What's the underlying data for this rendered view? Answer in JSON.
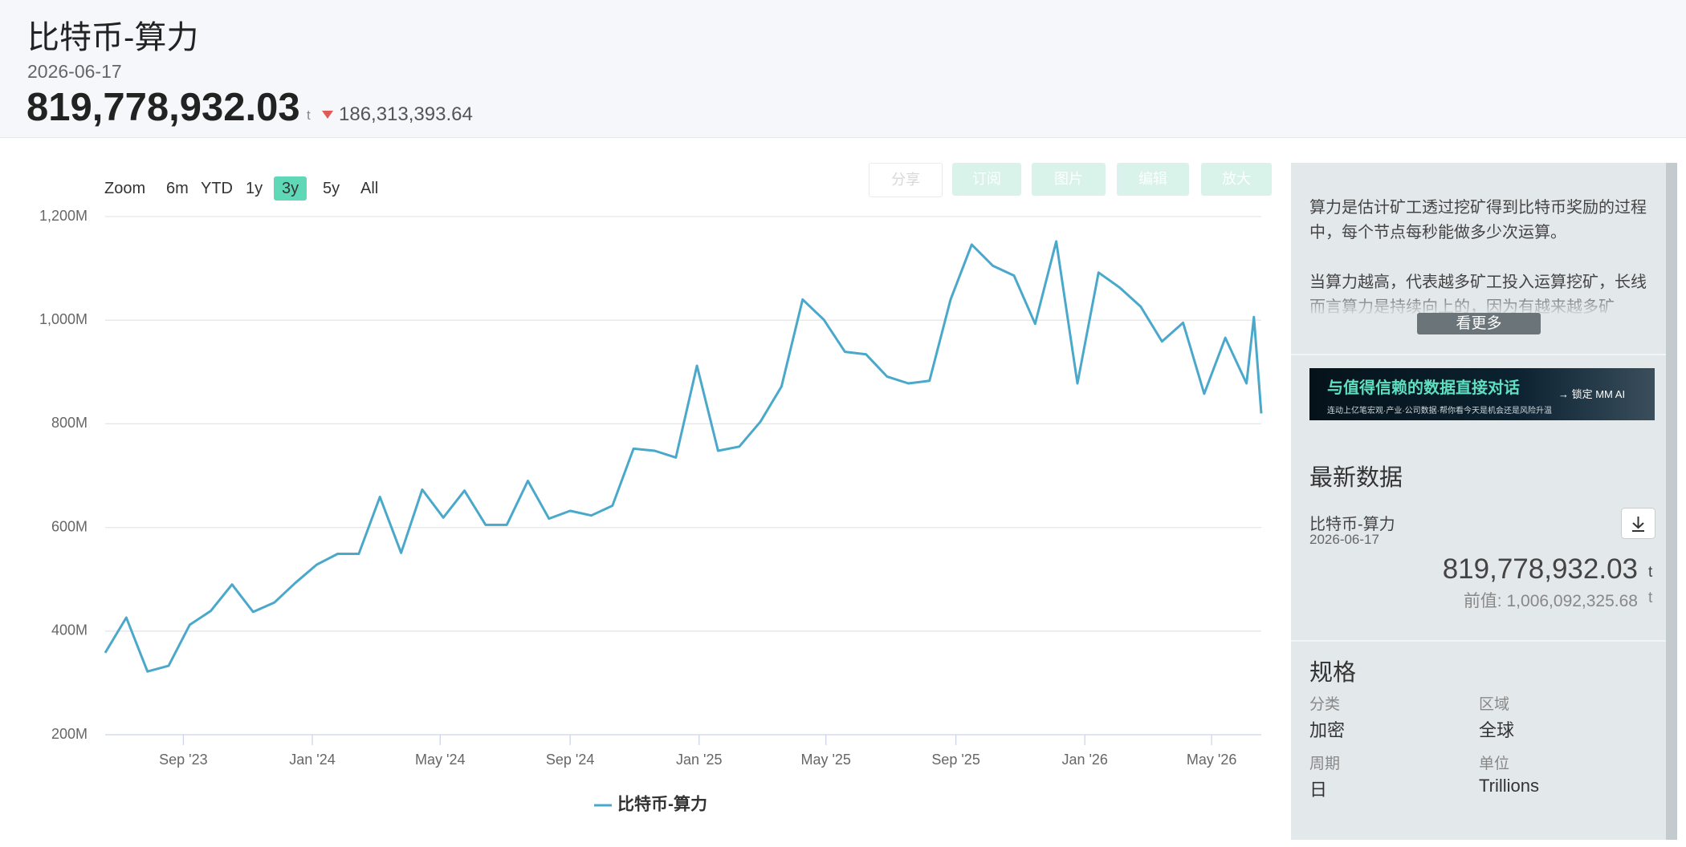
{
  "header": {
    "title": "比特币-算力",
    "date": "2026-06-17",
    "value": "819,778,932.03",
    "unit": "t",
    "change": "186,313,393.64"
  },
  "range_selector": {
    "label": "Zoom",
    "buttons": [
      "6m",
      "YTD",
      "1y",
      "3y",
      "5y",
      "All"
    ],
    "selected": "3y"
  },
  "tools": [
    "分享",
    "订阅",
    "图片",
    "编辑",
    "放大"
  ],
  "chart_data": {
    "type": "line",
    "x": [
      "2023-06-19",
      "2023-07-09",
      "2023-07-29",
      "2023-08-18",
      "2023-09-07",
      "2023-09-27",
      "2023-10-17",
      "2023-11-06",
      "2023-11-26",
      "2023-12-16",
      "2024-01-05",
      "2024-01-25",
      "2024-02-14",
      "2024-03-05",
      "2024-03-25",
      "2024-04-14",
      "2024-05-04",
      "2024-05-24",
      "2024-06-13",
      "2024-07-03",
      "2024-07-23",
      "2024-08-12",
      "2024-09-01",
      "2024-09-21",
      "2024-10-11",
      "2024-10-31",
      "2024-11-20",
      "2024-12-10",
      "2024-12-30",
      "2025-01-19",
      "2025-02-08",
      "2025-02-28",
      "2025-03-20",
      "2025-04-09",
      "2025-04-29",
      "2025-05-19",
      "2025-06-08",
      "2025-06-28",
      "2025-07-18",
      "2025-08-07",
      "2025-08-27",
      "2025-09-16",
      "2025-10-06",
      "2025-10-26",
      "2025-11-15",
      "2025-12-05",
      "2025-12-25",
      "2026-01-14",
      "2026-02-03",
      "2026-02-23",
      "2026-03-15",
      "2026-04-04",
      "2026-04-24",
      "2026-05-14",
      "2026-06-03",
      "2026-06-10",
      "2026-06-17"
    ],
    "series": [
      {
        "name": "比特币-算力",
        "color": "#4aa8cb",
        "values": [
          358,
          426,
          322,
          333,
          412,
          439,
          490,
          437,
          455,
          493,
          528,
          549,
          549,
          659,
          551,
          673,
          619,
          671,
          605,
          605,
          690,
          617,
          632,
          623,
          642,
          752,
          748,
          735,
          912,
          748,
          756,
          804,
          872,
          1040,
          1001,
          939,
          934,
          891,
          878,
          883,
          1040,
          1146,
          1105,
          1086,
          993,
          1152,
          878,
          1092,
          1063,
          1026,
          959,
          995,
          858,
          966,
          878,
          1006,
          820
        ]
      }
    ],
    "xlim": [
      "2023-06-19",
      "2026-06-17"
    ],
    "xticks": [
      {
        "value": "2023-09-01",
        "label": "Sep '23"
      },
      {
        "value": "2024-01-01",
        "label": "Jan '24"
      },
      {
        "value": "2024-05-01",
        "label": "May '24"
      },
      {
        "value": "2024-09-01",
        "label": "Sep '24"
      },
      {
        "value": "2025-01-01",
        "label": "Jan '25"
      },
      {
        "value": "2025-05-01",
        "label": "May '25"
      },
      {
        "value": "2025-09-01",
        "label": "Sep '25"
      },
      {
        "value": "2026-01-01",
        "label": "Jan '26"
      },
      {
        "value": "2026-05-01",
        "label": "May '26"
      }
    ],
    "ylim": [
      200,
      1200
    ],
    "yticks": [
      {
        "value": 200,
        "label": "200M"
      },
      {
        "value": 400,
        "label": "400M"
      },
      {
        "value": 600,
        "label": "600M"
      },
      {
        "value": 800,
        "label": "800M"
      },
      {
        "value": 1000,
        "label": "1,000M"
      },
      {
        "value": 1200,
        "label": "1,200M"
      }
    ],
    "grid": true,
    "legend": "bottom"
  },
  "sidebar": {
    "description": [
      "算力是估计矿工透过挖矿得到比特币奖励的过程中，每个节点每秒能做多少次运算。",
      "当算力越高，代表越多矿工投入运算挖矿，长线而言算力是持续向上的，因为有越来越多矿"
    ],
    "more": "看更多",
    "banner": {
      "title": "与值得信赖的数据直接对话",
      "cta": "→ 锁定 MM AI",
      "sub": "连动上亿笔宏观·产业·公司数据·帮你看今天是机会还是风险升温"
    },
    "latest": {
      "heading": "最新数据",
      "name": "比特币-算力",
      "date": "2026-06-17",
      "value": "819,778,932.03",
      "unit": "t",
      "prev_label": "前值:",
      "prev_value": "1,006,092,325.68",
      "prev_unit": "t"
    },
    "spec": {
      "heading": "规格",
      "items": [
        {
          "label": "分类",
          "value": "加密"
        },
        {
          "label": "区域",
          "value": "全球"
        },
        {
          "label": "周期",
          "value": "日"
        },
        {
          "label": "单位",
          "value": "Trillions"
        }
      ]
    }
  }
}
